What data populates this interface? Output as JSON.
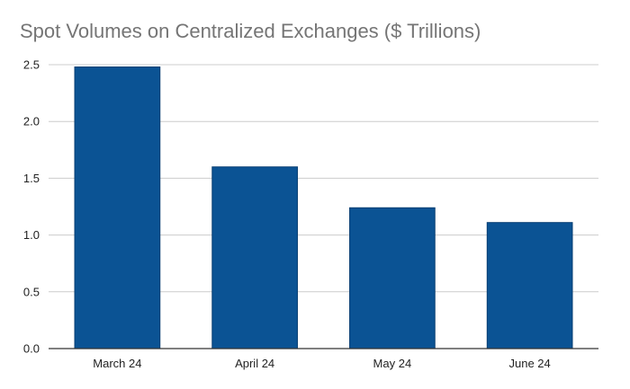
{
  "chart_data": {
    "type": "bar",
    "title": "Spot Volumes on Centralized Exchanges ($ Trillions)",
    "categories": [
      "March 24",
      "April 24",
      "May 24",
      "June 24"
    ],
    "values": [
      2.48,
      1.6,
      1.24,
      1.11
    ],
    "yticks": [
      "0.0",
      "0.5",
      "1.0",
      "1.5",
      "2.0",
      "2.5"
    ],
    "ylim": [
      0,
      2.5
    ],
    "xlabel": "",
    "ylabel": "",
    "grid": true,
    "legend": "none",
    "colors": {
      "bar": "#0b5394",
      "bar_border": "#093f73",
      "grid": "#cccccc",
      "axis": "#333333",
      "title": "#757575"
    }
  }
}
